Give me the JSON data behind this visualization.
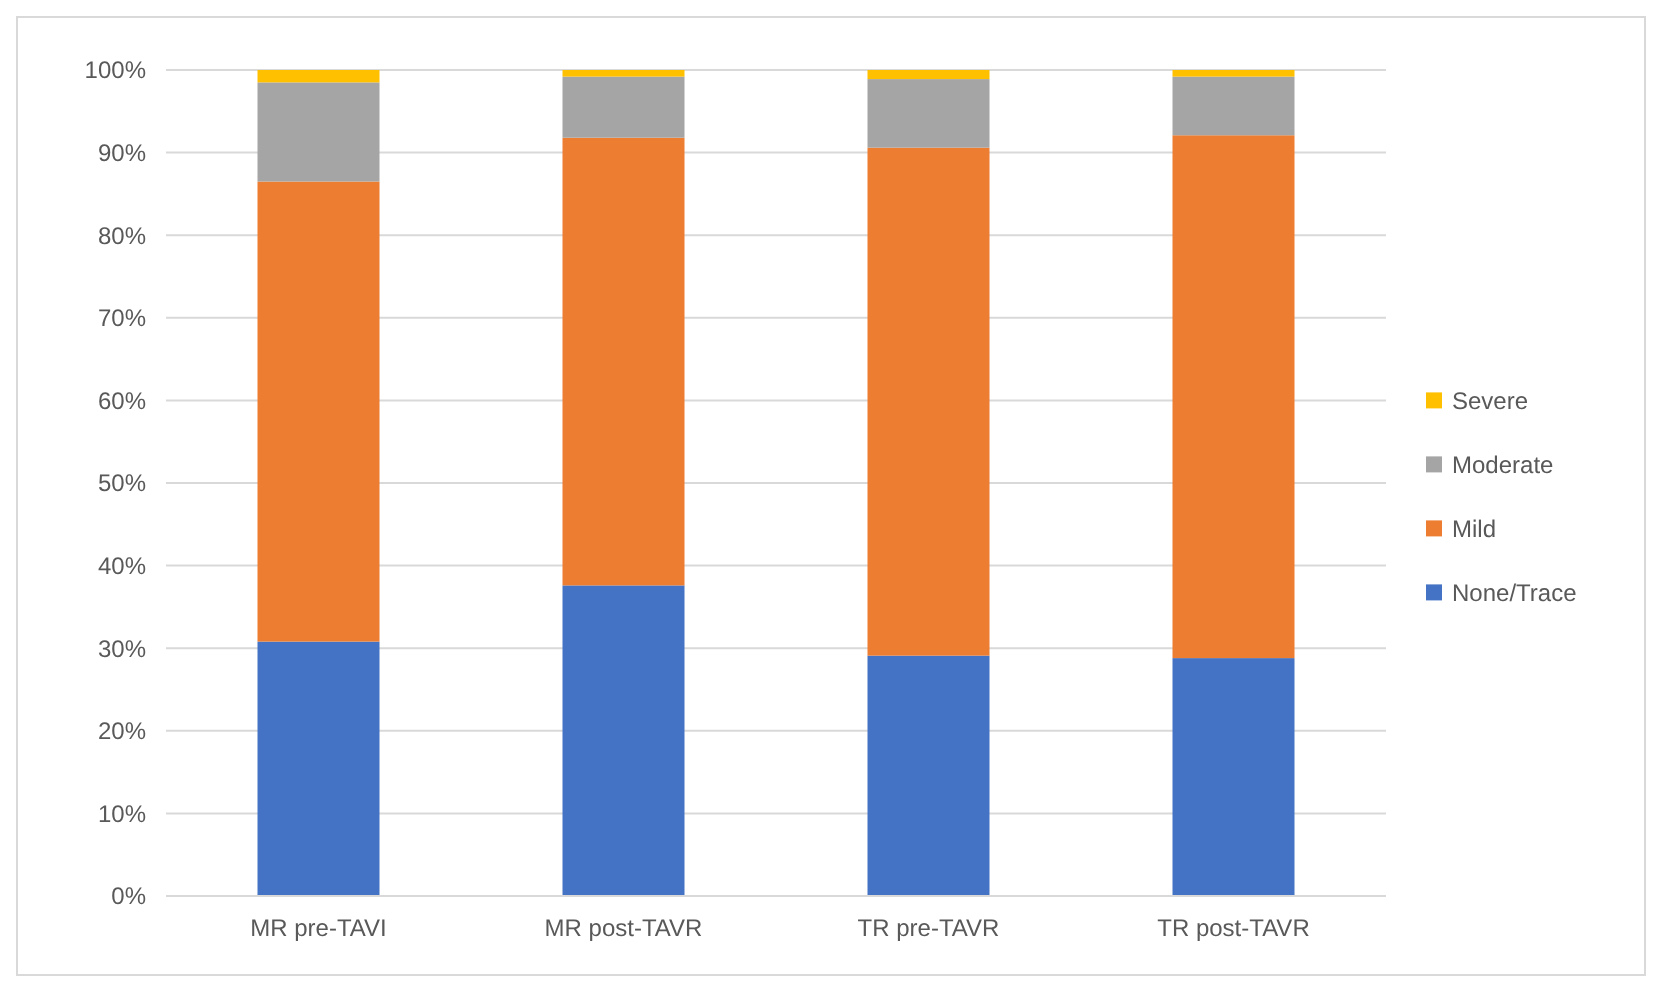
{
  "chart_data": {
    "type": "bar",
    "stacked": true,
    "categories": [
      "MR pre-TAVI",
      "MR post-TAVR",
      "TR pre-TAVR",
      "TR post-TAVR"
    ],
    "series": [
      {
        "name": "None/Trace",
        "color": "#4472c4",
        "values": [
          30.8,
          37.6,
          29.1,
          28.8
        ]
      },
      {
        "name": "Mild",
        "color": "#ed7d31",
        "values": [
          55.7,
          54.2,
          61.5,
          63.3
        ]
      },
      {
        "name": "Moderate",
        "color": "#a5a5a5",
        "values": [
          12.0,
          7.4,
          8.3,
          7.1
        ]
      },
      {
        "name": "Severe",
        "color": "#ffc000",
        "values": [
          1.5,
          0.8,
          1.1,
          0.8
        ]
      }
    ],
    "ylim": [
      0,
      100
    ],
    "yticks": [
      {
        "value": 0,
        "label": "0%"
      },
      {
        "value": 10,
        "label": "10%"
      },
      {
        "value": 20,
        "label": "20%"
      },
      {
        "value": 30,
        "label": "30%"
      },
      {
        "value": 40,
        "label": "40%"
      },
      {
        "value": 50,
        "label": "50%"
      },
      {
        "value": 60,
        "label": "60%"
      },
      {
        "value": 70,
        "label": "70%"
      },
      {
        "value": 80,
        "label": "80%"
      },
      {
        "value": 90,
        "label": "90%"
      },
      {
        "value": 100,
        "label": "100%"
      }
    ],
    "grid": "y",
    "legend": "right"
  }
}
